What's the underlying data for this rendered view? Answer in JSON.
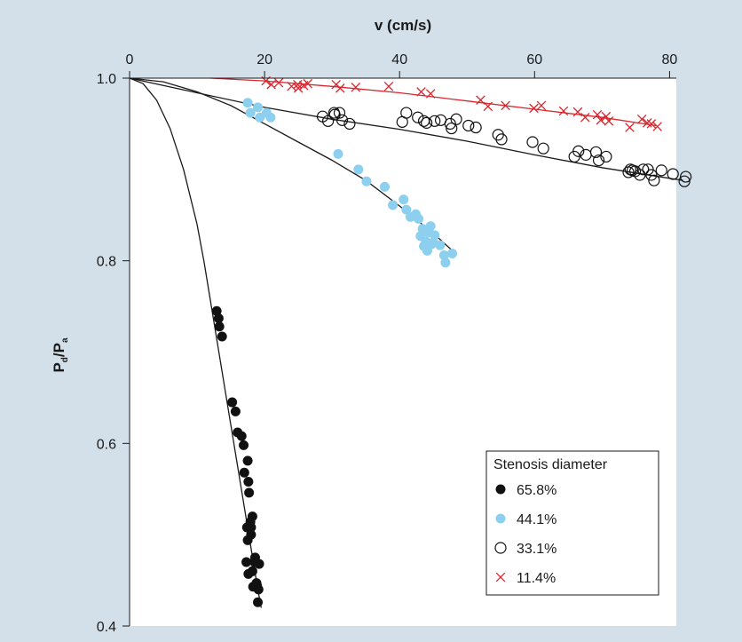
{
  "chart_data": {
    "type": "scatter",
    "xlabel": "v (cm/s)",
    "ylabel_main": "P",
    "ylabel_sub1": "d",
    "ylabel_mid": "/P",
    "ylabel_sub2": "a",
    "x_ticks": [
      0,
      20,
      40,
      60,
      80
    ],
    "y_ticks": [
      0.4,
      0.6,
      0.8,
      1.0
    ],
    "y_tick_labels": [
      "0.4",
      "0.6",
      "0.8",
      "1.0"
    ],
    "xlim": [
      0,
      81
    ],
    "ylim": [
      0.4,
      1.0
    ],
    "x_axis_position": "top",
    "grid": false,
    "legend_title": "Stenosis diameter",
    "legend_position": "bottom-right",
    "colors": {
      "background": "#d3e0ea",
      "plot_background": "#ffffff",
      "black": "#111111",
      "light_blue": "#8ccfee",
      "red": "#d9262e"
    },
    "series": [
      {
        "name": "65.8%",
        "marker": "filled-circle",
        "color": "#111111",
        "fit": [
          [
            0,
            1.0
          ],
          [
            2,
            0.994
          ],
          [
            4,
            0.976
          ],
          [
            6,
            0.945
          ],
          [
            8,
            0.9
          ],
          [
            10,
            0.84
          ],
          [
            11,
            0.8
          ],
          [
            12,
            0.755
          ],
          [
            13,
            0.71
          ],
          [
            14,
            0.665
          ],
          [
            15,
            0.62
          ],
          [
            16,
            0.575
          ],
          [
            17,
            0.53
          ],
          [
            18,
            0.485
          ],
          [
            19,
            0.44
          ],
          [
            19.5,
            0.42
          ]
        ],
        "x": [
          12.9,
          13.2,
          13.3,
          13.7,
          15.2,
          15.7,
          16.0,
          16.6,
          16.9,
          17.0,
          17.5,
          17.6,
          17.7,
          18.2,
          17.9,
          18.0,
          17.4,
          17.5,
          18.0,
          18.5,
          18.6,
          19.2,
          17.3,
          18.2,
          17.6,
          18.9,
          18.3,
          18.8,
          19.1,
          19.0
        ],
        "y": [
          0.745,
          0.737,
          0.728,
          0.717,
          0.645,
          0.635,
          0.612,
          0.608,
          0.598,
          0.568,
          0.581,
          0.558,
          0.546,
          0.52,
          0.514,
          0.5,
          0.508,
          0.494,
          0.508,
          0.47,
          0.475,
          0.468,
          0.47,
          0.46,
          0.457,
          0.444,
          0.443,
          0.447,
          0.44,
          0.426
        ]
      },
      {
        "name": "44.1%",
        "marker": "filled-circle",
        "color": "#8ccfee",
        "fit": [
          [
            0,
            1.0
          ],
          [
            5,
            0.996
          ],
          [
            10,
            0.985
          ],
          [
            15,
            0.97
          ],
          [
            20,
            0.95
          ],
          [
            25,
            0.93
          ],
          [
            30,
            0.91
          ],
          [
            35,
            0.888
          ],
          [
            40,
            0.86
          ],
          [
            45,
            0.83
          ],
          [
            48,
            0.81
          ]
        ],
        "x": [
          17.5,
          17.9,
          19.0,
          19.3,
          20.3,
          20.9,
          30.9,
          33.9,
          35.1,
          37.8,
          39.0,
          40.6,
          41.0,
          41.6,
          42.4,
          42.8,
          43.1,
          43.4,
          43.9,
          44.3,
          44.6,
          45.2,
          44.7,
          45.0,
          46.0,
          46.6,
          46.8,
          47.8,
          43.6,
          44.1
        ],
        "y": [
          0.973,
          0.962,
          0.968,
          0.957,
          0.962,
          0.957,
          0.917,
          0.9,
          0.887,
          0.881,
          0.861,
          0.867,
          0.856,
          0.848,
          0.851,
          0.846,
          0.827,
          0.835,
          0.821,
          0.831,
          0.838,
          0.828,
          0.818,
          0.82,
          0.817,
          0.806,
          0.798,
          0.808,
          0.816,
          0.811
        ]
      },
      {
        "name": "33.1%",
        "marker": "open-circle",
        "color": "#111111",
        "fit": [
          [
            0,
            1.0
          ],
          [
            10,
            0.984
          ],
          [
            20,
            0.968
          ],
          [
            30,
            0.955
          ],
          [
            40,
            0.944
          ],
          [
            50,
            0.931
          ],
          [
            60,
            0.916
          ],
          [
            70,
            0.902
          ],
          [
            82,
            0.888
          ]
        ],
        "x": [
          28.6,
          29.4,
          30.4,
          31.1,
          30.3,
          31.5,
          32.6,
          40.4,
          41.0,
          42.7,
          43.6,
          44.0,
          45.2,
          46.1,
          47.5,
          47.7,
          48.4,
          50.2,
          51.3,
          54.6,
          55.1,
          59.7,
          61.3,
          65.9,
          66.5,
          67.6,
          69.1,
          69.5,
          70.6,
          74.5,
          74.9,
          75.6,
          76.1,
          76.8,
          77.3,
          77.7,
          78.8,
          80.5,
          82.2,
          82.4,
          74.2,
          73.9
        ],
        "y": [
          0.958,
          0.953,
          0.96,
          0.962,
          0.962,
          0.954,
          0.95,
          0.952,
          0.962,
          0.957,
          0.953,
          0.951,
          0.953,
          0.954,
          0.95,
          0.945,
          0.955,
          0.948,
          0.946,
          0.938,
          0.933,
          0.93,
          0.923,
          0.914,
          0.92,
          0.916,
          0.919,
          0.91,
          0.914,
          0.899,
          0.898,
          0.894,
          0.9,
          0.9,
          0.894,
          0.888,
          0.899,
          0.895,
          0.887,
          0.892,
          0.9,
          0.897
        ]
      },
      {
        "name": "11.4%",
        "marker": "cross",
        "color": "#d9262e",
        "fit": [
          [
            12,
            1.0
          ],
          [
            20,
            0.997
          ],
          [
            30,
            0.991
          ],
          [
            40,
            0.984
          ],
          [
            50,
            0.975
          ],
          [
            60,
            0.966
          ],
          [
            70,
            0.957
          ],
          [
            78,
            0.948
          ]
        ],
        "x": [
          20.2,
          21.0,
          22.1,
          24.0,
          24.9,
          25.0,
          25.8,
          26.4,
          30.6,
          31.2,
          33.5,
          38.4,
          43.2,
          44.6,
          52.0,
          53.1,
          55.7,
          59.9,
          61.0,
          64.3,
          66.4,
          67.5,
          69.3,
          69.8,
          70.6,
          71.0,
          74.1,
          75.9,
          76.7,
          77.3,
          78.2
        ],
        "y": [
          0.997,
          0.993,
          0.995,
          0.991,
          0.993,
          0.989,
          0.992,
          0.994,
          0.993,
          0.989,
          0.99,
          0.991,
          0.985,
          0.983,
          0.976,
          0.969,
          0.97,
          0.967,
          0.97,
          0.964,
          0.963,
          0.957,
          0.96,
          0.954,
          0.958,
          0.953,
          0.946,
          0.955,
          0.951,
          0.95,
          0.947
        ]
      }
    ]
  }
}
